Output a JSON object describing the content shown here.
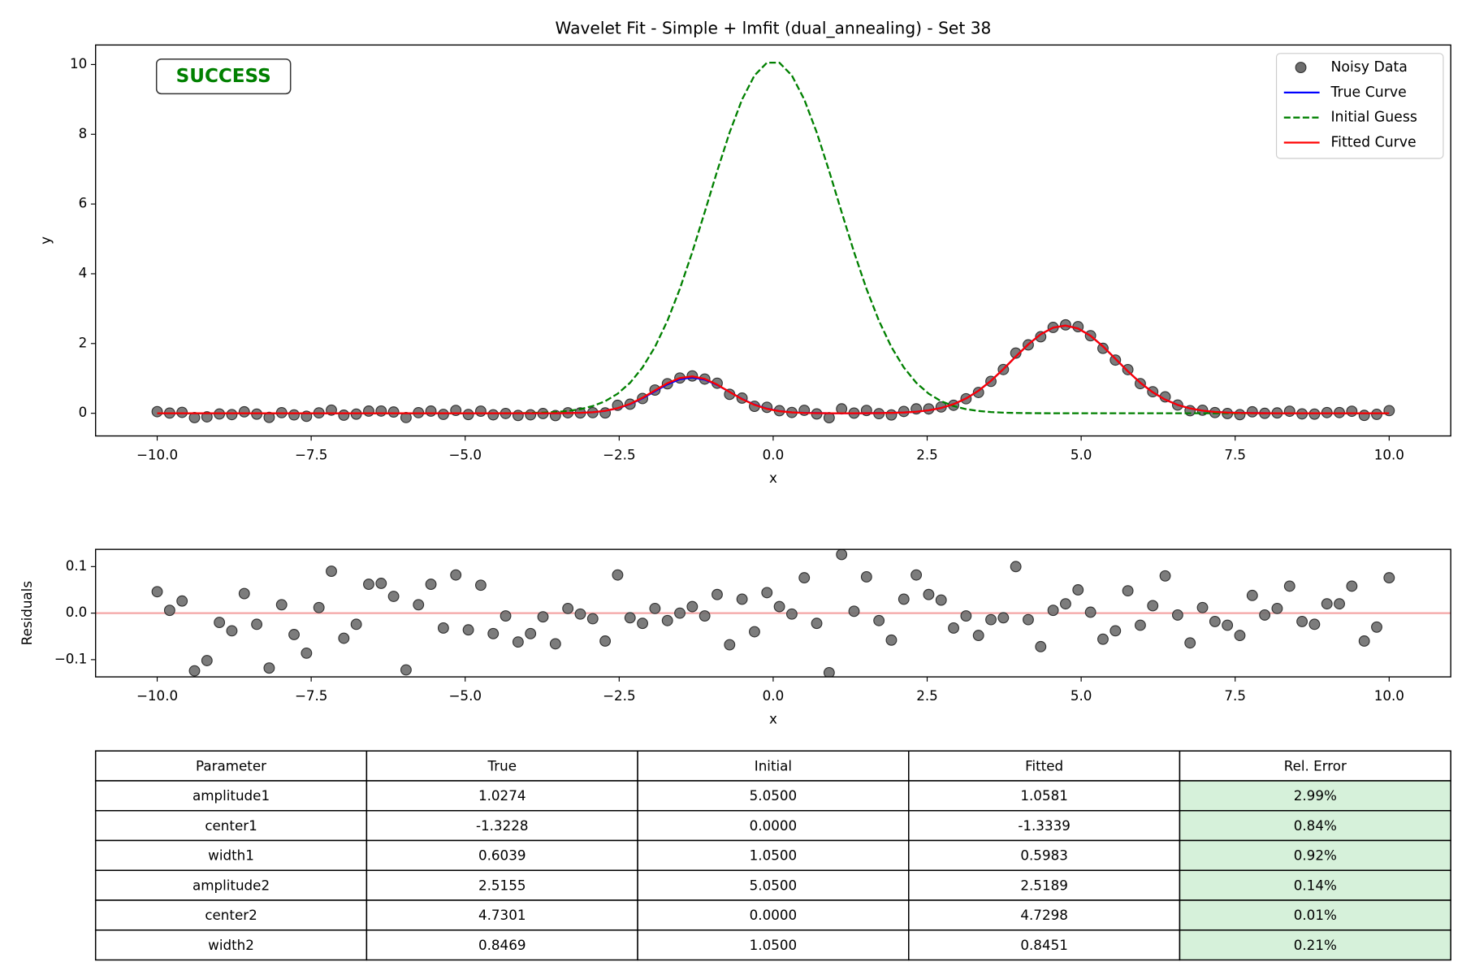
{
  "chart_data": [
    {
      "type": "line",
      "title": "Wavelet Fit - Simple + lmfit (dual_annealing) - Set 38",
      "xlabel": "x",
      "ylabel": "y",
      "annotation": "SUCCESS",
      "annotation_color": "#008000",
      "legend": "upper right",
      "grid": false,
      "xlim": [
        -11,
        11
      ],
      "ylim": [
        -0.65,
        10.56
      ],
      "xticks": [
        {
          "value": -10,
          "label": "−10.0"
        },
        {
          "value": -7.5,
          "label": "−7.5"
        },
        {
          "value": -5,
          "label": "−5.0"
        },
        {
          "value": -2.5,
          "label": "−2.5"
        },
        {
          "value": 0,
          "label": "0.0"
        },
        {
          "value": 2.5,
          "label": "2.5"
        },
        {
          "value": 5,
          "label": "5.0"
        },
        {
          "value": 7.5,
          "label": "7.5"
        },
        {
          "value": 10,
          "label": "10.0"
        }
      ],
      "yticks": [
        0,
        2,
        4,
        6,
        8,
        10
      ],
      "x": [
        -10,
        -9.798,
        -9.596,
        -9.394,
        -9.192,
        -8.99,
        -8.788,
        -8.586,
        -8.384,
        -8.182,
        -7.98,
        -7.778,
        -7.576,
        -7.374,
        -7.172,
        -6.97,
        -6.768,
        -6.566,
        -6.364,
        -6.162,
        -5.96,
        -5.758,
        -5.556,
        -5.354,
        -5.152,
        -4.949,
        -4.747,
        -4.545,
        -4.343,
        -4.141,
        -3.939,
        -3.737,
        -3.535,
        -3.333,
        -3.131,
        -2.929,
        -2.727,
        -2.525,
        -2.323,
        -2.121,
        -1.919,
        -1.717,
        -1.515,
        -1.313,
        -1.111,
        -0.909,
        -0.707,
        -0.505,
        -0.303,
        -0.101,
        0.101,
        0.303,
        0.505,
        0.707,
        0.909,
        1.111,
        1.313,
        1.515,
        1.717,
        1.919,
        2.121,
        2.323,
        2.525,
        2.727,
        2.929,
        3.131,
        3.333,
        3.535,
        3.737,
        3.939,
        4.141,
        4.343,
        4.545,
        4.747,
        4.949,
        5.152,
        5.354,
        5.556,
        5.758,
        5.96,
        6.162,
        6.364,
        6.566,
        6.768,
        6.97,
        7.172,
        7.374,
        7.576,
        7.778,
        7.98,
        8.182,
        8.384,
        8.586,
        8.788,
        8.99,
        9.192,
        9.394,
        9.596,
        9.798,
        10
      ],
      "series": [
        {
          "name": "Noisy Data",
          "mode": "markers",
          "color": "#6e6e6e",
          "edgecolor": "#333333",
          "values": [
            0.046,
            0.006,
            0.026,
            -0.124,
            -0.102,
            -0.02,
            -0.038,
            0.042,
            -0.024,
            -0.118,
            0.018,
            -0.046,
            -0.086,
            0.012,
            0.09,
            -0.054,
            -0.024,
            0.062,
            0.064,
            0.036,
            -0.122,
            0.018,
            0.062,
            -0.032,
            0.082,
            -0.036,
            0.06,
            -0.044,
            -0.006,
            -0.062,
            -0.044,
            -0.008,
            -0.065,
            0.014,
            0.01,
            0.018,
            0.01,
            0.228,
            0.26,
            0.423,
            0.666,
            0.846,
            1.011,
            1.071,
            0.981,
            0.862,
            0.543,
            0.435,
            0.2,
            0.171,
            0.074,
            0.023,
            0.085,
            -0.019,
            -0.127,
            0.126,
            0.005,
            0.08,
            -0.011,
            -0.048,
            0.052,
            0.126,
            0.125,
            0.181,
            0.23,
            0.417,
            0.597,
            0.915,
            1.255,
            1.726,
            1.961,
            2.194,
            2.462,
            2.535,
            2.483,
            2.224,
            1.862,
            1.526,
            1.252,
            0.85,
            0.618,
            0.471,
            0.236,
            0.075,
            0.088,
            0.021,
            -0.007,
            -0.039,
            0.042,
            -0.002,
            0.01,
            0.058,
            -0.018,
            -0.024,
            0.02,
            0.02,
            0.058,
            -0.06,
            -0.03,
            0.076
          ]
        },
        {
          "name": "True Curve",
          "mode": "lines",
          "linestyle": "solid",
          "color": "#0000ff",
          "values": [
            0,
            0,
            0,
            0,
            0,
            0,
            0,
            0,
            0,
            0,
            0,
            0,
            0,
            0,
            0,
            0,
            0,
            0,
            0,
            0,
            0,
            0,
            0,
            0,
            0,
            0,
            0,
            0,
            0,
            0,
            0,
            0,
            0.001,
            0.004,
            0.012,
            0.03,
            0.069,
            0.142,
            0.261,
            0.429,
            0.631,
            0.83,
            0.977,
            1.027,
            0.966,
            0.812,
            0.611,
            0.411,
            0.247,
            0.133,
            0.064,
            0.027,
            0.011,
            0.004,
            0.001,
            0,
            0.001,
            0.002,
            0.005,
            0.01,
            0.022,
            0.044,
            0.085,
            0.153,
            0.262,
            0.423,
            0.645,
            0.929,
            1.265,
            1.626,
            1.975,
            2.266,
            2.456,
            2.515,
            2.433,
            2.222,
            1.918,
            1.564,
            1.204,
            0.876,
            0.602,
            0.391,
            0.24,
            0.139,
            0.076,
            0.039,
            0.019,
            0.009,
            0.004,
            0.002,
            0,
            0,
            0,
            0,
            0,
            0,
            0,
            0,
            0,
            0
          ]
        },
        {
          "name": "Initial Guess",
          "mode": "lines",
          "linestyle": "dashed",
          "color": "#008000",
          "values": [
            0,
            0,
            0,
            0,
            0,
            0,
            0,
            0,
            0,
            0,
            0,
            0,
            0,
            0,
            0,
            0,
            0,
            0,
            0,
            0,
            0,
            0,
            0,
            0,
            0,
            0,
            0,
            0,
            0.002,
            0.004,
            0.009,
            0.018,
            0.035,
            0.066,
            0.118,
            0.206,
            0.346,
            0.561,
            0.874,
            1.313,
            1.901,
            2.652,
            3.567,
            4.622,
            5.77,
            6.944,
            8.052,
            8.997,
            9.688,
            10.053,
            10.053,
            9.688,
            8.997,
            8.052,
            6.944,
            5.77,
            4.622,
            3.567,
            2.652,
            1.901,
            1.313,
            0.874,
            0.561,
            0.346,
            0.206,
            0.118,
            0.066,
            0.035,
            0.018,
            0.009,
            0.004,
            0.002,
            0,
            0,
            0,
            0,
            0,
            0,
            0,
            0,
            0,
            0,
            0,
            0,
            0,
            0,
            0,
            0,
            0,
            0,
            0,
            0,
            0,
            0,
            0,
            0,
            0,
            0,
            0,
            0
          ]
        },
        {
          "name": "Fitted Curve",
          "mode": "lines",
          "linestyle": "solid",
          "color": "#ff0000",
          "values": [
            0,
            0,
            0,
            0,
            0,
            0,
            0,
            0,
            0,
            0,
            0,
            0,
            0,
            0,
            0,
            0,
            0,
            0,
            0,
            0,
            0,
            0,
            0,
            0,
            0,
            0,
            0,
            0,
            0,
            0,
            0,
            0,
            0.001,
            0.004,
            0.012,
            0.03,
            0.07,
            0.146,
            0.27,
            0.445,
            0.656,
            0.862,
            1.011,
            1.057,
            0.987,
            0.822,
            0.611,
            0.405,
            0.24,
            0.127,
            0.06,
            0.025,
            0.009,
            0.003,
            0.001,
            0,
            0.001,
            0.002,
            0.005,
            0.01,
            0.022,
            0.044,
            0.085,
            0.153,
            0.262,
            0.423,
            0.645,
            0.929,
            1.265,
            1.626,
            1.975,
            2.266,
            2.456,
            2.515,
            2.433,
            2.222,
            1.918,
            1.564,
            1.204,
            0.876,
            0.602,
            0.391,
            0.24,
            0.139,
            0.076,
            0.039,
            0.019,
            0.009,
            0.004,
            0.002,
            0,
            0,
            0,
            0,
            0,
            0,
            0,
            0,
            0,
            0
          ]
        }
      ]
    },
    {
      "type": "scatter",
      "xlabel": "x",
      "ylabel": "Residuals",
      "grid": false,
      "xlim": [
        -11,
        11
      ],
      "ylim": [
        -0.137,
        0.137
      ],
      "xticks": [
        {
          "value": -10,
          "label": "−10.0"
        },
        {
          "value": -7.5,
          "label": "−7.5"
        },
        {
          "value": -5,
          "label": "−5.0"
        },
        {
          "value": -2.5,
          "label": "−2.5"
        },
        {
          "value": 0,
          "label": "0.0"
        },
        {
          "value": 2.5,
          "label": "2.5"
        },
        {
          "value": 5,
          "label": "5.0"
        },
        {
          "value": 7.5,
          "label": "7.5"
        },
        {
          "value": 10,
          "label": "10.0"
        }
      ],
      "yticks": [
        {
          "value": -0.1,
          "label": "−0.1"
        },
        {
          "value": 0,
          "label": "0.0"
        },
        {
          "value": 0.1,
          "label": "0.1"
        }
      ],
      "hline": 0,
      "hline_color": "#f4a6a6",
      "color": "#6e6e6e",
      "edgecolor": "#333333",
      "mode": "markers",
      "x": [
        -10,
        -9.798,
        -9.596,
        -9.394,
        -9.192,
        -8.99,
        -8.788,
        -8.586,
        -8.384,
        -8.182,
        -7.98,
        -7.778,
        -7.576,
        -7.374,
        -7.172,
        -6.97,
        -6.768,
        -6.566,
        -6.364,
        -6.162,
        -5.96,
        -5.758,
        -5.556,
        -5.354,
        -5.152,
        -4.949,
        -4.747,
        -4.545,
        -4.343,
        -4.141,
        -3.939,
        -3.737,
        -3.535,
        -3.333,
        -3.131,
        -2.929,
        -2.727,
        -2.525,
        -2.323,
        -2.121,
        -1.919,
        -1.717,
        -1.515,
        -1.313,
        -1.111,
        -0.909,
        -0.707,
        -0.505,
        -0.303,
        -0.101,
        0.101,
        0.303,
        0.505,
        0.707,
        0.909,
        1.111,
        1.313,
        1.515,
        1.717,
        1.919,
        2.121,
        2.323,
        2.525,
        2.727,
        2.929,
        3.131,
        3.333,
        3.535,
        3.737,
        3.939,
        4.141,
        4.343,
        4.545,
        4.747,
        4.949,
        5.152,
        5.354,
        5.556,
        5.758,
        5.96,
        6.162,
        6.364,
        6.566,
        6.768,
        6.97,
        7.172,
        7.374,
        7.576,
        7.778,
        7.98,
        8.182,
        8.384,
        8.586,
        8.788,
        8.99,
        9.192,
        9.394,
        9.596,
        9.798,
        10
      ],
      "values": [
        0.046,
        0.006,
        0.026,
        -0.124,
        -0.102,
        -0.02,
        -0.038,
        0.042,
        -0.024,
        -0.118,
        0.018,
        -0.046,
        -0.086,
        0.012,
        0.09,
        -0.054,
        -0.024,
        0.062,
        0.064,
        0.036,
        -0.122,
        0.018,
        0.062,
        -0.032,
        0.082,
        -0.036,
        0.06,
        -0.044,
        -0.006,
        -0.062,
        -0.044,
        -0.008,
        -0.066,
        0.01,
        -0.002,
        -0.012,
        -0.06,
        0.082,
        -0.01,
        -0.022,
        0.01,
        -0.016,
        0,
        0.014,
        -0.006,
        0.04,
        -0.068,
        0.03,
        -0.04,
        0.044,
        0.014,
        -0.002,
        0.076,
        -0.022,
        -0.128,
        0.126,
        0.004,
        0.078,
        -0.016,
        -0.058,
        0.03,
        0.082,
        0.04,
        0.028,
        -0.032,
        -0.006,
        -0.048,
        -0.014,
        -0.01,
        0.1,
        -0.014,
        -0.072,
        0.006,
        0.02,
        0.05,
        0.002,
        -0.056,
        -0.038,
        0.048,
        -0.026,
        0.016,
        0.08,
        -0.004,
        -0.064,
        0.012,
        -0.018,
        -0.026,
        -0.048,
        0.038,
        -0.004,
        0.01,
        0.058,
        -0.018,
        -0.024,
        0.02,
        0.02,
        0.058,
        -0.06,
        -0.03,
        0.076
      ]
    }
  ],
  "table": {
    "columns": [
      "Parameter",
      "True",
      "Initial",
      "Fitted",
      "Rel. Error"
    ],
    "rows": [
      [
        "amplitude1",
        "1.0274",
        "5.0500",
        "1.0581",
        "2.99%"
      ],
      [
        "center1",
        "-1.3228",
        "0.0000",
        "-1.3339",
        "0.84%"
      ],
      [
        "width1",
        "0.6039",
        "1.0500",
        "0.5983",
        "0.92%"
      ],
      [
        "amplitude2",
        "2.5155",
        "5.0500",
        "2.5189",
        "0.14%"
      ],
      [
        "center2",
        "4.7301",
        "0.0000",
        "4.7298",
        "0.01%"
      ],
      [
        "width2",
        "0.8469",
        "1.0500",
        "0.8451",
        "0.21%"
      ]
    ],
    "highlight_column": 4,
    "highlight_color": "#d6f1da"
  }
}
